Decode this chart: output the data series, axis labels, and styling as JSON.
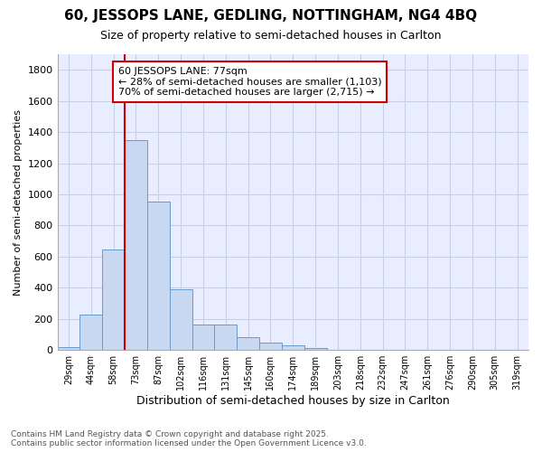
{
  "title": "60, JESSOPS LANE, GEDLING, NOTTINGHAM, NG4 4BQ",
  "subtitle": "Size of property relative to semi-detached houses in Carlton",
  "xlabel": "Distribution of semi-detached houses by size in Carlton",
  "ylabel": "Number of semi-detached properties",
  "bar_values": [
    20,
    230,
    645,
    1350,
    955,
    390,
    165,
    165,
    80,
    45,
    30,
    10,
    0,
    0,
    0,
    0,
    0,
    0,
    0,
    0,
    0
  ],
  "bin_labels": [
    "29sqm",
    "44sqm",
    "58sqm",
    "73sqm",
    "87sqm",
    "102sqm",
    "116sqm",
    "131sqm",
    "145sqm",
    "160sqm",
    "174sqm",
    "189sqm",
    "203sqm",
    "218sqm",
    "232sqm",
    "247sqm",
    "261sqm",
    "276sqm",
    "290sqm",
    "305sqm",
    "319sqm"
  ],
  "bar_color": "#c8d8f0",
  "bar_edge_color": "#6699cc",
  "grid_color": "#c8d0e8",
  "vline_x": 3.0,
  "annotation_text": "60 JESSOPS LANE: 77sqm\n← 28% of semi-detached houses are smaller (1,103)\n70% of semi-detached houses are larger (2,715) →",
  "annotation_box_color": "#ffffff",
  "annotation_border_color": "#cc0000",
  "vline_color": "#cc0000",
  "ylim": [
    0,
    1900
  ],
  "yticks": [
    0,
    200,
    400,
    600,
    800,
    1000,
    1200,
    1400,
    1600,
    1800
  ],
  "footer_text": "Contains HM Land Registry data © Crown copyright and database right 2025.\nContains public sector information licensed under the Open Government Licence v3.0.",
  "bg_color": "#ffffff",
  "plot_bg_color": "#e8eeff"
}
